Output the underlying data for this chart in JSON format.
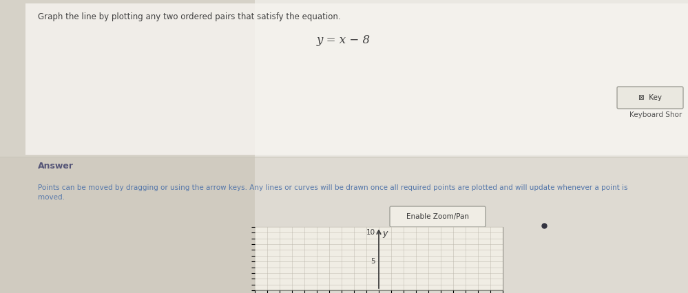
{
  "title_text": "Graph the line by plotting any two ordered pairs that satisfy the equation.",
  "equation": "y = x − 8",
  "answer_label": "Answer",
  "key_button": "⊠  Key",
  "keyboard_shortcut": "Keyboard Shor",
  "enable_zoom_pan": "Enable Zoom/Pan",
  "instruction": "Points can be moved by dragging or using the arrow keys. Any lines or curves will be drawn once all required points are plotted and will update whenever a point is moved.",
  "bg_top_color": "#e8e6e0",
  "bg_bottom_color": "#dedad0",
  "divider_color": "#c8c4b8",
  "graph_bg": "#f0ede4",
  "grid_color": "#b8b4a8",
  "axis_color": "#404040",
  "title_color": "#404040",
  "answer_color": "#404040",
  "instruction_color": "#5577aa",
  "equation_color": "#404040",
  "key_btn_bg": "#eae8e0",
  "key_btn_border": "#a0a098",
  "zoom_btn_bg": "#f0ede5",
  "zoom_btn_border": "#a0a098",
  "dot_color": "#333340",
  "photo_bg_color": "#b0a898"
}
